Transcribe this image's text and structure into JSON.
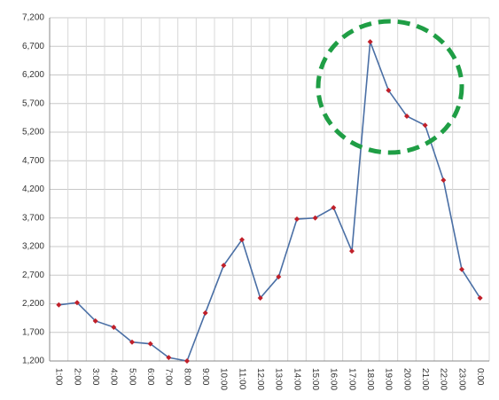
{
  "chart_data": {
    "type": "line",
    "categories": [
      "1:00",
      "2:00",
      "3:00",
      "4:00",
      "5:00",
      "6:00",
      "7:00",
      "8:00",
      "9:00",
      "10:00",
      "11:00",
      "12:00",
      "13:00",
      "14:00",
      "15:00",
      "16:00",
      "17:00",
      "18:00",
      "19:00",
      "20:00",
      "21:00",
      "22:00",
      "23:00",
      "0:00"
    ],
    "values": [
      2180,
      2220,
      1900,
      1790,
      1530,
      1500,
      1260,
      1200,
      2040,
      2870,
      3320,
      2300,
      2670,
      3680,
      3700,
      3880,
      3120,
      6780,
      5930,
      5480,
      5320,
      4360,
      2800,
      2300
    ],
    "color": "#4a6fa5",
    "marker_color": "#c0202a",
    "ylim": [
      1200,
      7200
    ],
    "yticks": [
      {
        "value": 1200,
        "label": "1,200"
      },
      {
        "value": 1700,
        "label": "1,700"
      },
      {
        "value": 2200,
        "label": "2,200"
      },
      {
        "value": 2700,
        "label": "2,700"
      },
      {
        "value": 3200,
        "label": "3,200"
      },
      {
        "value": 3700,
        "label": "3,700"
      },
      {
        "value": 4200,
        "label": "4,200"
      },
      {
        "value": 4700,
        "label": "4,700"
      },
      {
        "value": 5200,
        "label": "5,200"
      },
      {
        "value": 5700,
        "label": "5,700"
      },
      {
        "value": 6200,
        "label": "6,200"
      },
      {
        "value": 6700,
        "label": "6,700"
      },
      {
        "value": 7200,
        "label": "7,200"
      }
    ],
    "grid": true
  }
}
